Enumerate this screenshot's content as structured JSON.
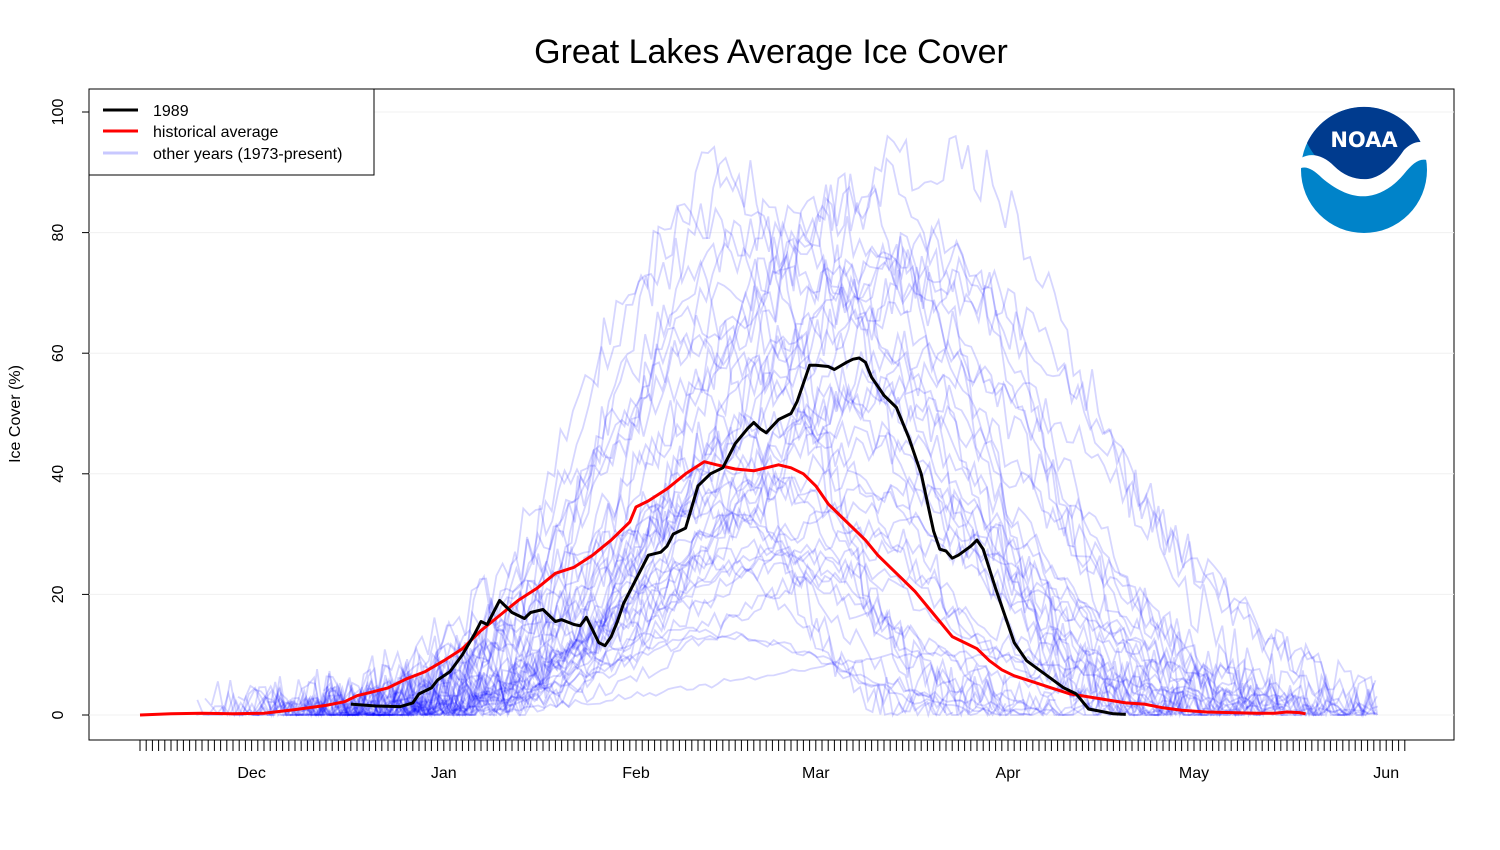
{
  "chart_data": {
    "type": "line",
    "title": "Great Lakes Average Ice Cover",
    "xlabel": "",
    "ylabel": "Ice Cover (%)",
    "ylim": [
      0,
      100
    ],
    "yticks": [
      0,
      20,
      40,
      60,
      80,
      100
    ],
    "x_unit": "days since Nov 13",
    "xlim": [
      0,
      204
    ],
    "month_labels": [
      {
        "label": "Dec",
        "day": 18
      },
      {
        "label": "Jan",
        "day": 49
      },
      {
        "label": "Feb",
        "day": 80
      },
      {
        "label": "Mar",
        "day": 109
      },
      {
        "label": "Apr",
        "day": 140
      },
      {
        "label": "May",
        "day": 170
      },
      {
        "label": "Jun",
        "day": 201
      }
    ],
    "grid": true,
    "legend": {
      "placement": "top-left",
      "entries": [
        {
          "label": "1989",
          "color": "#000000"
        },
        {
          "label": "historical average",
          "color": "#ff0000"
        },
        {
          "label": "other years (1973-present)",
          "color": "#c8c8ff"
        }
      ]
    },
    "logo": "NOAA",
    "series": [
      {
        "name": "1989",
        "color": "#000000",
        "points": [
          [
            34,
            1.8
          ],
          [
            38,
            1.5
          ],
          [
            42,
            1.4
          ],
          [
            44,
            2
          ],
          [
            45,
            3.5
          ],
          [
            47,
            4.5
          ],
          [
            48,
            5.8
          ],
          [
            50,
            7.2
          ],
          [
            52,
            10
          ],
          [
            54,
            13.5
          ],
          [
            55,
            15.5
          ],
          [
            56,
            15
          ],
          [
            57,
            17
          ],
          [
            58,
            19
          ],
          [
            59,
            18
          ],
          [
            60,
            17
          ],
          [
            62,
            16
          ],
          [
            63,
            17
          ],
          [
            65,
            17.5
          ],
          [
            67,
            15.5
          ],
          [
            68,
            15.8
          ],
          [
            70,
            15
          ],
          [
            71,
            14.8
          ],
          [
            72,
            16.2
          ],
          [
            74,
            12
          ],
          [
            75,
            11.5
          ],
          [
            76,
            13
          ],
          [
            77,
            15.5
          ],
          [
            78,
            18.5
          ],
          [
            80,
            22.5
          ],
          [
            82,
            26.5
          ],
          [
            84,
            27
          ],
          [
            85,
            28
          ],
          [
            86,
            30
          ],
          [
            88,
            31
          ],
          [
            90,
            38
          ],
          [
            92,
            40
          ],
          [
            94,
            41
          ],
          [
            96,
            45
          ],
          [
            98,
            47.5
          ],
          [
            99,
            48.5
          ],
          [
            100,
            47.5
          ],
          [
            101,
            46.8
          ],
          [
            103,
            49
          ],
          [
            105,
            50
          ],
          [
            106,
            52
          ],
          [
            108,
            58
          ],
          [
            109,
            58
          ],
          [
            111,
            57.8
          ],
          [
            112,
            57.3
          ],
          [
            114,
            58.5
          ],
          [
            115,
            59
          ],
          [
            116,
            59.2
          ],
          [
            117,
            58.5
          ],
          [
            118,
            56
          ],
          [
            120,
            53
          ],
          [
            122,
            51
          ],
          [
            124,
            46
          ],
          [
            126,
            40
          ],
          [
            128,
            30.5
          ],
          [
            129,
            27.5
          ],
          [
            130,
            27.2
          ],
          [
            131,
            26
          ],
          [
            132,
            26.5
          ],
          [
            134,
            28
          ],
          [
            135,
            29
          ],
          [
            136,
            27.5
          ],
          [
            138,
            21
          ],
          [
            140,
            15
          ],
          [
            141,
            12
          ],
          [
            143,
            9
          ],
          [
            145,
            7.5
          ],
          [
            147,
            6
          ],
          [
            149,
            4.5
          ],
          [
            151,
            3.5
          ],
          [
            153,
            1
          ],
          [
            155,
            0.6
          ],
          [
            157,
            0.2
          ],
          [
            159,
            0.1
          ]
        ]
      },
      {
        "name": "historical average",
        "color": "#ff0000",
        "points": [
          [
            0,
            0
          ],
          [
            5,
            0.2
          ],
          [
            10,
            0.3
          ],
          [
            15,
            0.2
          ],
          [
            20,
            0.3
          ],
          [
            25,
            0.9
          ],
          [
            30,
            1.6
          ],
          [
            33,
            2.2
          ],
          [
            35,
            3.2
          ],
          [
            37,
            3.7
          ],
          [
            40,
            4.5
          ],
          [
            43,
            6
          ],
          [
            46,
            7.2
          ],
          [
            49,
            9
          ],
          [
            52,
            11
          ],
          [
            55,
            14
          ],
          [
            58,
            16.5
          ],
          [
            61,
            19
          ],
          [
            64,
            21
          ],
          [
            67,
            23.5
          ],
          [
            70,
            24.5
          ],
          [
            73,
            26.5
          ],
          [
            76,
            29
          ],
          [
            79,
            32
          ],
          [
            80,
            34.5
          ],
          [
            82,
            35.5
          ],
          [
            85,
            37.5
          ],
          [
            88,
            40
          ],
          [
            91,
            42
          ],
          [
            93,
            41.5
          ],
          [
            96,
            40.8
          ],
          [
            99,
            40.5
          ],
          [
            101,
            41
          ],
          [
            103,
            41.5
          ],
          [
            105,
            41
          ],
          [
            107,
            40
          ],
          [
            109,
            38
          ],
          [
            111,
            35
          ],
          [
            113,
            33
          ],
          [
            115,
            31
          ],
          [
            117,
            29
          ],
          [
            119,
            26.5
          ],
          [
            121,
            24.5
          ],
          [
            123,
            22.5
          ],
          [
            125,
            20.5
          ],
          [
            127,
            18
          ],
          [
            129,
            15.5
          ],
          [
            131,
            13
          ],
          [
            133,
            12
          ],
          [
            135,
            11
          ],
          [
            137,
            9
          ],
          [
            139,
            7.5
          ],
          [
            141,
            6.5
          ],
          [
            144,
            5.5
          ],
          [
            147,
            4.5
          ],
          [
            150,
            3.5
          ],
          [
            153,
            3
          ],
          [
            156,
            2.5
          ],
          [
            159,
            2
          ],
          [
            162,
            1.8
          ],
          [
            165,
            1.2
          ],
          [
            168,
            0.8
          ],
          [
            172,
            0.5
          ],
          [
            176,
            0.4
          ],
          [
            180,
            0.3
          ],
          [
            183,
            0.3
          ],
          [
            185,
            0.5
          ],
          [
            187,
            0.4
          ],
          [
            188,
            0.2
          ]
        ]
      }
    ],
    "other_years_color": "#0000ff",
    "other_years_opacity": 0.16
  }
}
